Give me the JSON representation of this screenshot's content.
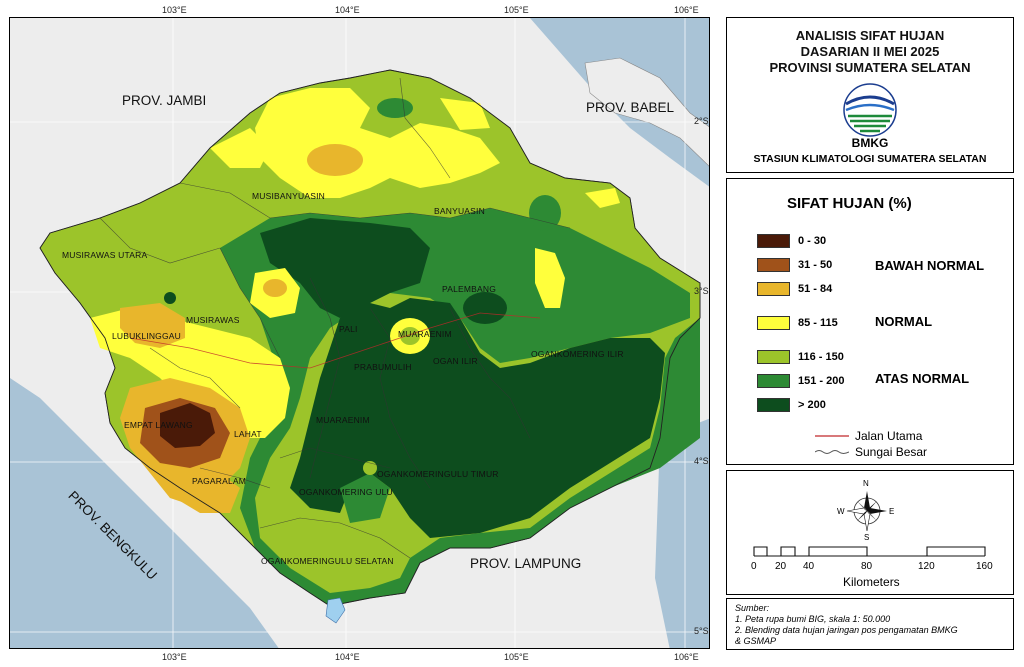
{
  "map": {
    "title_lines": [
      "ANALISIS SIFAT HUJAN",
      "DASARIAN II MEI 2025",
      "PROVINSI SUMATERA SELATAN"
    ],
    "agency": "BMKG",
    "station": "STASIUN KLIMATOLOGI SUMATERA SELATAN",
    "lon_ticks": [
      "103°E",
      "104°E",
      "105°E",
      "106°E"
    ],
    "lat_ticks": [
      "2°S",
      "3°S",
      "4°S",
      "5°S"
    ],
    "provinces": {
      "jambi": "PROV. JAMBI",
      "babel": "PROV. BABEL",
      "bengkulu": "PROV. BENGKULU",
      "lampung": "PROV. LAMPUNG"
    },
    "regencies": [
      "MUSIBANYUASIN",
      "BANYUASIN",
      "MUSIRAWAS UTARA",
      "PALEMBANG",
      "MUSIRAWAS",
      "LUBUKLINGGAU",
      "PALI",
      "MUARAENIM",
      "OGAN ILIR",
      "OGANKOMERING ILIR",
      "PRABUMULIH",
      "EMPAT LAWANG",
      "LAHAT",
      "MUARAENIM",
      "OGANKOMERINGULU TIMUR",
      "PAGARALAM",
      "OGANKOMERING ULU",
      "OGANKOMERINGULU SELATAN"
    ]
  },
  "legend": {
    "title": "SIFAT HUJAN (%)",
    "classes": [
      {
        "range": "0 - 30",
        "color": "#4a1a08"
      },
      {
        "range": "31 - 50",
        "color": "#a0521a"
      },
      {
        "range": "51 - 84",
        "color": "#e8b62c"
      },
      {
        "range": "85 - 115",
        "color": "#ffff3c"
      },
      {
        "range": "116 - 150",
        "color": "#9cc42a"
      },
      {
        "range": "151 - 200",
        "color": "#2d8a34"
      },
      {
        "range": "> 200",
        "color": "#0d4d1e"
      }
    ],
    "categories": [
      "BAWAH NORMAL",
      "NORMAL",
      "ATAS NORMAL"
    ],
    "road_label": "Jalan Utama",
    "river_label": "Sungai Besar",
    "road_color": "#c0282a",
    "river_color": "#555555"
  },
  "scale": {
    "ticks": [
      "0",
      "20",
      "40",
      "80",
      "120",
      "160"
    ],
    "unit": "Kilometers",
    "compass": {
      "n": "N",
      "s": "S",
      "e": "E",
      "w": "W"
    }
  },
  "source": {
    "heading": "Sumber:",
    "lines": [
      "1. Peta rupa bumi BIG, skala 1: 50.000",
      "2. Blending data hujan jaringan pos pengamatan BMKG",
      "& GSMAP"
    ]
  }
}
